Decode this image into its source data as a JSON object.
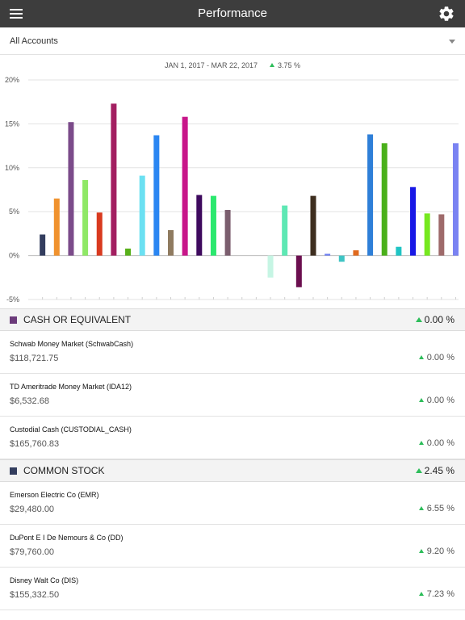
{
  "header": {
    "title": "Performance",
    "menu_icon": "menu-icon",
    "settings_icon": "gear-icon"
  },
  "account_select": {
    "value": "All Accounts"
  },
  "chart_header": {
    "date_range": "JAN 1, 2017 - MAR 22, 2017",
    "change": "3.75 %",
    "change_color": "#2dbd5a"
  },
  "chart_data": {
    "type": "bar",
    "title": "",
    "xlabel": "",
    "ylabel": "",
    "ylim": [
      -5,
      20
    ],
    "grid": true,
    "legend": "none",
    "y_ticks": [
      "20%",
      "15%",
      "10%",
      "5%",
      "0%",
      "-5%"
    ],
    "values": [
      2.4,
      6.5,
      15.2,
      8.6,
      4.9,
      17.3,
      0.8,
      9.1,
      13.7,
      2.9,
      15.8,
      6.9,
      6.8,
      5.2,
      0.0,
      0.0,
      -2.5,
      5.7,
      -3.6,
      6.8,
      0.2,
      -0.7,
      0.6,
      13.8,
      12.8,
      1.0,
      7.8,
      4.8,
      4.7,
      12.8
    ],
    "colors": [
      "#333d5e",
      "#f0922e",
      "#7b4b8a",
      "#8fe866",
      "#d93a1f",
      "#a31f61",
      "#58b01a",
      "#6be0f2",
      "#2a86f2",
      "#8f7b60",
      "#c8168a",
      "#3e0a5e",
      "#2be86e",
      "#7b5e6e",
      "#ffffff",
      "#ffffff",
      "#c6f5e4",
      "#5ee8b4",
      "#6b0f4f",
      "#3e2e1f",
      "#6b7ef2",
      "#3ec4c4",
      "#e06a1f",
      "#2e7fd8",
      "#4ab01a",
      "#1fc4c4",
      "#1818e6",
      "#76e81f",
      "#9e6a6a",
      "#7a83f2"
    ]
  },
  "sections": [
    {
      "name": "CASH OR EQUIVALENT",
      "pct": "0.00 %",
      "color": "#6b3a7a",
      "rows": [
        {
          "name": "Schwab Money Market (SchwabCash)",
          "value": "$118,721.75",
          "pct": "0.00 %"
        },
        {
          "name": "TD Ameritrade Money Market (IDA12)",
          "value": "$6,532.68",
          "pct": "0.00 %"
        },
        {
          "name": "Custodial Cash (CUSTODIAL_CASH)",
          "value": "$165,760.83",
          "pct": "0.00 %"
        }
      ]
    },
    {
      "name": "COMMON STOCK",
      "pct": "2.45 %",
      "color": "#333d5e",
      "rows": [
        {
          "name": "Emerson Electric Co (EMR)",
          "value": "$29,480.00",
          "pct": "6.55 %"
        },
        {
          "name": "DuPont E I De Nemours & Co (DD)",
          "value": "$79,760.00",
          "pct": "9.20 %"
        },
        {
          "name": "Disney Walt Co (DIS)",
          "value": "$155,332.50",
          "pct": "7.23 %"
        }
      ]
    }
  ]
}
